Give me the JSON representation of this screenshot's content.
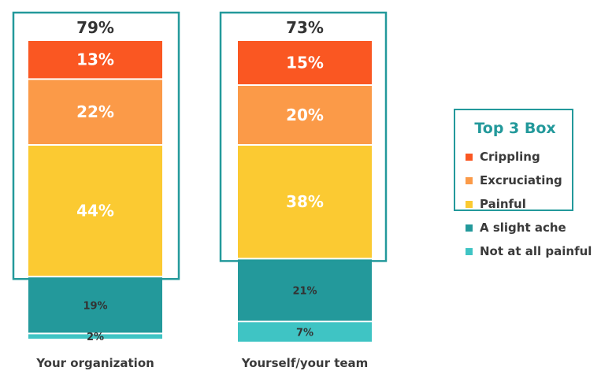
{
  "chart_data": {
    "type": "bar",
    "stacked": true,
    "categories": [
      "Your organization",
      "Yourself/your team"
    ],
    "series": [
      {
        "name": "Crippling",
        "values": [
          13,
          15
        ],
        "labels": [
          "13%",
          "15%"
        ],
        "color": "#fa5722"
      },
      {
        "name": "Excruciating",
        "values": [
          22,
          20
        ],
        "labels": [
          "22%",
          "20%"
        ],
        "color": "#fb9a48"
      },
      {
        "name": "Painful",
        "values": [
          44,
          38
        ],
        "labels": [
          "44%",
          "38%"
        ],
        "color": "#fbca32"
      },
      {
        "name": "A slight ache",
        "values": [
          19,
          21
        ],
        "labels": [
          "19%",
          "21%"
        ],
        "color": "#23999b"
      },
      {
        "name": "Not at all painful",
        "values": [
          2,
          7
        ],
        "labels": [
          "2%",
          "7%"
        ],
        "color": "#3fc4c4"
      }
    ],
    "top3_totals": [
      "79%",
      "73%"
    ],
    "top3_box_color": "#23999b",
    "legend": {
      "title": "Top 3 Box",
      "placement": "right"
    },
    "order": "top-to-bottom"
  }
}
